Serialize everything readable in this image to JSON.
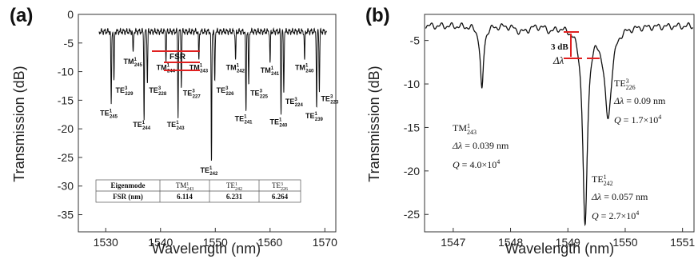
{
  "chart_data": [
    {
      "panel": "(a)",
      "type": "line",
      "xlabel": "Wavelength (nm)",
      "ylabel": "Transmission (dB)",
      "xlim": [
        1525,
        1572
      ],
      "ylim": [
        -38,
        0
      ],
      "x_ticks": [
        1530,
        1540,
        1550,
        1560,
        1570
      ],
      "y_ticks": [
        0,
        -5,
        -10,
        -15,
        -20,
        -25,
        -30,
        -35
      ],
      "baseline": -3,
      "dips": [
        {
          "x": 1531.0,
          "depth": -16.0,
          "mode": "TE",
          "sup": "1",
          "sub": "245"
        },
        {
          "x": 1531.5,
          "depth": -12.0,
          "mode": "TE",
          "sup": "3",
          "sub": "229"
        },
        {
          "x": 1535.0,
          "depth": -7.0,
          "mode": "TM",
          "sup": "1",
          "sub": "245"
        },
        {
          "x": 1537.0,
          "depth": -18.0,
          "mode": "TE",
          "sup": "1",
          "sub": "244"
        },
        {
          "x": 1537.6,
          "depth": -12.0,
          "mode": "TE",
          "sup": "3",
          "sub": "228"
        },
        {
          "x": 1541.0,
          "depth": -8.0,
          "mode": "TM",
          "sup": "1",
          "sub": "244"
        },
        {
          "x": 1543.2,
          "depth": -18.0,
          "mode": "TE",
          "sup": "1",
          "sub": "243"
        },
        {
          "x": 1543.8,
          "depth": -12.5,
          "mode": "TE",
          "sup": "3",
          "sub": "227"
        },
        {
          "x": 1547.0,
          "depth": -8.0,
          "mode": "TM",
          "sup": "1",
          "sub": "243"
        },
        {
          "x": 1549.3,
          "depth": -26.0,
          "mode": "TE",
          "sup": "1",
          "sub": "242"
        },
        {
          "x": 1549.9,
          "depth": -12.0,
          "mode": "TE",
          "sup": "3",
          "sub": "226"
        },
        {
          "x": 1553.7,
          "depth": -8.0,
          "mode": "TM",
          "sup": "1",
          "sub": "242"
        },
        {
          "x": 1555.6,
          "depth": -17.0,
          "mode": "TE",
          "sup": "1",
          "sub": "241"
        },
        {
          "x": 1556.1,
          "depth": -12.5,
          "mode": "TE",
          "sup": "3",
          "sub": "225"
        },
        {
          "x": 1560.0,
          "depth": -8.5,
          "mode": "TM",
          "sup": "1",
          "sub": "241"
        },
        {
          "x": 1562.0,
          "depth": -17.5,
          "mode": "TE",
          "sup": "1",
          "sub": "240"
        },
        {
          "x": 1562.5,
          "depth": -14.0,
          "mode": "TE",
          "sup": "3",
          "sub": "224"
        },
        {
          "x": 1566.3,
          "depth": -8.0,
          "mode": "TM",
          "sup": "1",
          "sub": "240"
        },
        {
          "x": 1568.5,
          "depth": -16.5,
          "mode": "TE",
          "sup": "1",
          "sub": "239"
        },
        {
          "x": 1569.0,
          "depth": -13.5,
          "mode": "TE",
          "sup": "3",
          "sub": "223"
        }
      ],
      "fsr_label": "FSR",
      "table": {
        "headers": [
          "Eigenmode",
          "TM",
          "TE",
          "TE"
        ],
        "header_sup": [
          "",
          "1",
          "1",
          "3"
        ],
        "header_sub": [
          "",
          "243",
          "242",
          "226"
        ],
        "row_label": "FSR (nm)",
        "values": [
          "6.114",
          "6.231",
          "6.264"
        ]
      }
    },
    {
      "panel": "(b)",
      "type": "line",
      "xlabel": "Wavelength (nm)",
      "ylabel": "Transmission (dB)",
      "xlim": [
        1546.5,
        1551.2
      ],
      "ylim": [
        -27,
        -2
      ],
      "x_ticks": [
        1547,
        1548,
        1549,
        1550,
        1551
      ],
      "y_ticks": [
        -5,
        -10,
        -15,
        -20,
        -25
      ],
      "baseline": -3.3,
      "dips": [
        {
          "x": 1547.5,
          "depth": -10.8,
          "width": 0.039
        },
        {
          "x": 1549.3,
          "depth": -26.2,
          "width": 0.057
        },
        {
          "x": 1549.7,
          "depth": -13.6,
          "width": 0.09
        }
      ],
      "three_db_label": "3 dB",
      "delta_lambda_label": "Δλ",
      "annotations": [
        {
          "mode": "TM",
          "sup": "1",
          "sub": "243",
          "dl_value": "= 0.039 nm",
          "q_value": "= 4.0×10",
          "q_exp": "4"
        },
        {
          "mode": "TE",
          "sup": "3",
          "sub": "226",
          "dl_value": "= 0.09 nm",
          "q_value": "= 1.7×10",
          "q_exp": "4"
        },
        {
          "mode": "TE",
          "sup": "1",
          "sub": "242",
          "dl_value": "= 0.057 nm",
          "q_value": "= 2.7×10",
          "q_exp": "4"
        }
      ]
    }
  ]
}
